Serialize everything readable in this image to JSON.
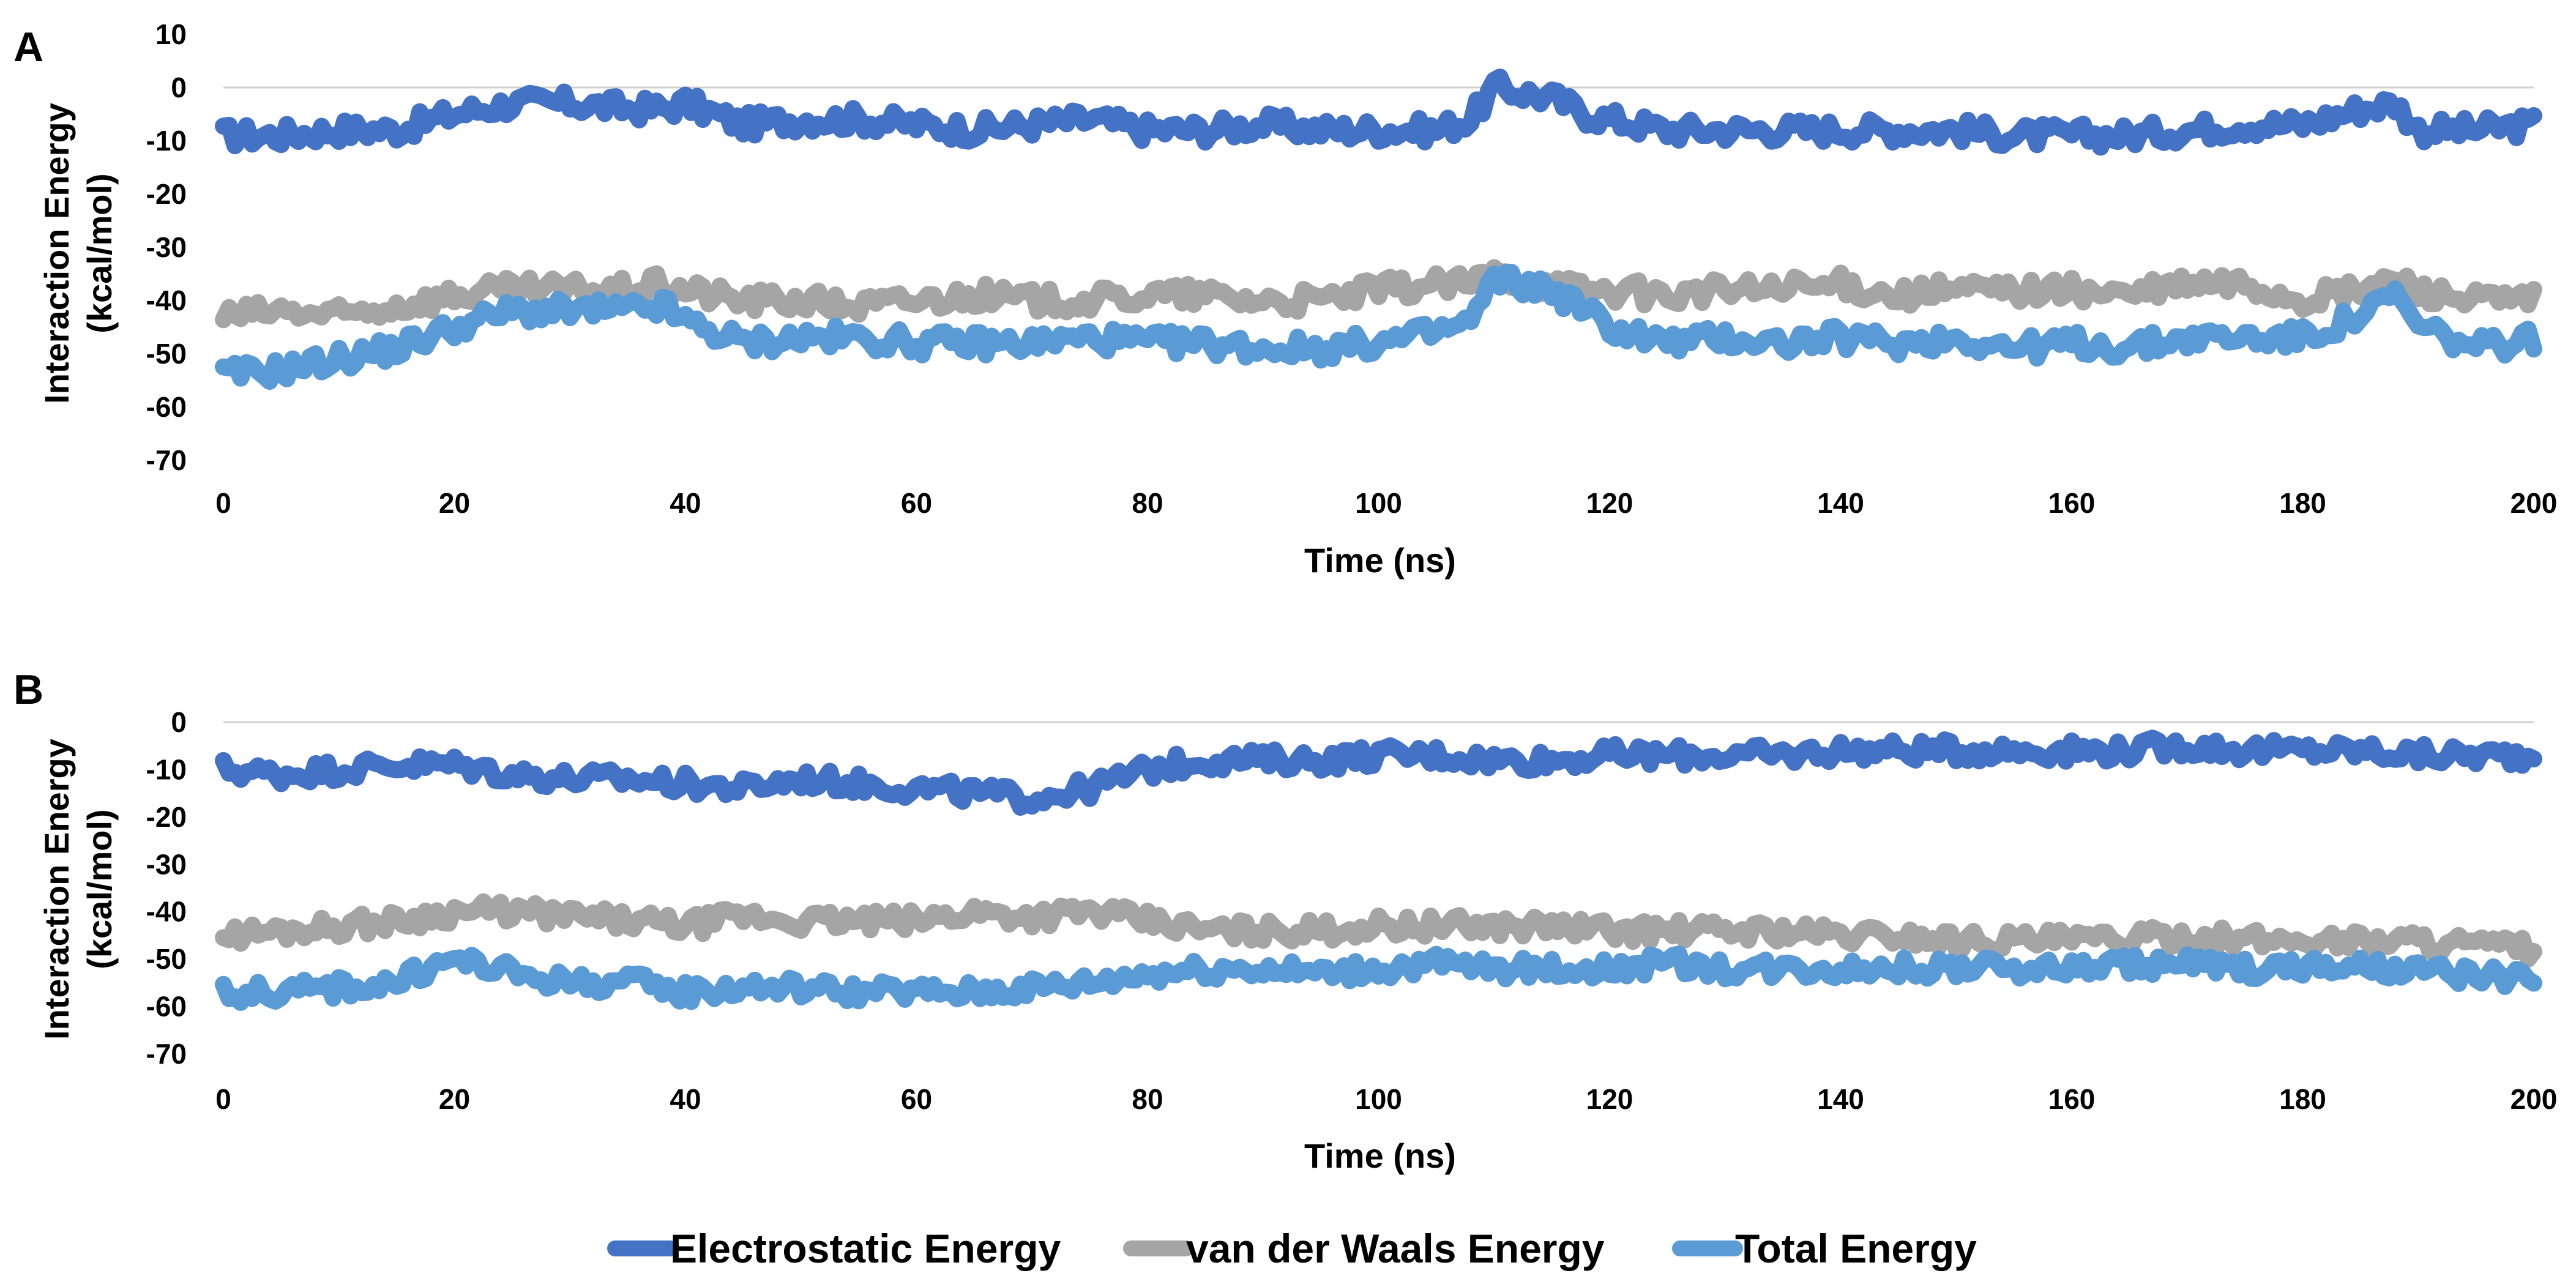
{
  "chart_data": [
    {
      "panel_label": "A",
      "type": "line",
      "xlabel": "Time (ns)",
      "ylabel_line1": "Interaction Energy",
      "ylabel_line2": "(kcal/mol)",
      "xlim": [
        0,
        200
      ],
      "ylim": [
        -70,
        10
      ],
      "x_ticks": [
        0,
        20,
        40,
        60,
        80,
        100,
        120,
        140,
        160,
        180,
        200
      ],
      "y_ticks": [
        10,
        0,
        -10,
        -20,
        -30,
        -40,
        -50,
        -60,
        -70
      ],
      "x": [
        0,
        5,
        10,
        15,
        20,
        25,
        30,
        35,
        38,
        40,
        45,
        50,
        55,
        60,
        65,
        70,
        75,
        80,
        85,
        90,
        95,
        100,
        105,
        108,
        110,
        115,
        118,
        120,
        125,
        130,
        135,
        140,
        145,
        150,
        155,
        160,
        165,
        170,
        175,
        180,
        185,
        188,
        190,
        195,
        200
      ],
      "series": [
        {
          "name": "Electrostatic Energy",
          "color": "#4472c4",
          "values": [
            -9,
            -9,
            -8,
            -8,
            -5,
            -3,
            -3,
            -4,
            -4,
            -3,
            -7,
            -6,
            -6,
            -7,
            -8,
            -7,
            -6,
            -8,
            -8,
            -7,
            -8,
            -8,
            -8,
            -6,
            0,
            -2,
            -5,
            -6,
            -8,
            -8,
            -8,
            -8,
            -8,
            -8,
            -9,
            -9,
            -9,
            -8,
            -7,
            -7,
            -4,
            -3,
            -8,
            -8,
            -7
          ]
        },
        {
          "name": "van der Waals Energy",
          "color": "#a5a5a5",
          "values": [
            -43,
            -42,
            -43,
            -41,
            -39,
            -38,
            -38,
            -38,
            -37,
            -38,
            -40,
            -40,
            -41,
            -40,
            -39,
            -40,
            -40,
            -39,
            -39,
            -40,
            -40,
            -38,
            -37,
            -37,
            -35,
            -37,
            -38,
            -38,
            -39,
            -38,
            -38,
            -37,
            -39,
            -38,
            -38,
            -38,
            -39,
            -37,
            -37,
            -40,
            -38,
            -36,
            -38,
            -40,
            -40
          ]
        },
        {
          "name": "Total Energy",
          "color": "#5b9bd5",
          "values": [
            -54,
            -53,
            -51,
            -49,
            -45,
            -42,
            -42,
            -42,
            -41,
            -44,
            -48,
            -47,
            -47,
            -48,
            -48,
            -48,
            -47,
            -48,
            -48,
            -49,
            -49,
            -48,
            -46,
            -44,
            -36,
            -38,
            -42,
            -45,
            -48,
            -47,
            -48,
            -47,
            -48,
            -47,
            -49,
            -48,
            -49,
            -47,
            -47,
            -47,
            -43,
            -39,
            -45,
            -49,
            -47
          ]
        }
      ]
    },
    {
      "panel_label": "B",
      "type": "line",
      "xlabel": "Time (ns)",
      "ylabel_line1": "Interaction Energy",
      "ylabel_line2": "(kcal/mol)",
      "xlim": [
        0,
        200
      ],
      "ylim": [
        -70,
        0
      ],
      "x_ticks": [
        0,
        20,
        40,
        60,
        80,
        100,
        120,
        140,
        160,
        180,
        200
      ],
      "y_ticks": [
        0,
        -10,
        -20,
        -30,
        -40,
        -50,
        -60,
        -70
      ],
      "x": [
        0,
        5,
        10,
        15,
        20,
        25,
        30,
        35,
        40,
        45,
        50,
        55,
        60,
        65,
        70,
        75,
        80,
        85,
        90,
        95,
        100,
        105,
        110,
        115,
        120,
        125,
        130,
        135,
        140,
        145,
        150,
        155,
        160,
        165,
        170,
        175,
        180,
        185,
        190,
        195,
        200
      ],
      "series": [
        {
          "name": "Electrostatic Energy",
          "color": "#4472c4",
          "values": [
            -10,
            -11,
            -10,
            -9,
            -9,
            -11,
            -12,
            -12,
            -13,
            -14,
            -12,
            -13,
            -14,
            -15,
            -16,
            -14,
            -10,
            -8,
            -8,
            -8,
            -7,
            -7,
            -8,
            -8,
            -7,
            -7,
            -7,
            -7,
            -6,
            -6,
            -6,
            -6,
            -6,
            -6,
            -5,
            -6,
            -6,
            -6,
            -7,
            -7,
            -7
          ]
        },
        {
          "name": "van der Waals Energy",
          "color": "#a5a5a5",
          "values": [
            -45,
            -44,
            -43,
            -42,
            -40,
            -40,
            -41,
            -42,
            -43,
            -41,
            -42,
            -42,
            -42,
            -40,
            -41,
            -40,
            -42,
            -44,
            -44,
            -44,
            -43,
            -43,
            -43,
            -43,
            -44,
            -44,
            -44,
            -44,
            -45,
            -45,
            -46,
            -46,
            -46,
            -46,
            -45,
            -46,
            -46,
            -46,
            -46,
            -47,
            -48
          ]
        },
        {
          "name": "Total Energy",
          "color": "#5b9bd5",
          "values": [
            -57,
            -57,
            -56,
            -55,
            -50,
            -53,
            -55,
            -55,
            -57,
            -56,
            -56,
            -57,
            -57,
            -57,
            -56,
            -55,
            -53,
            -52,
            -52,
            -53,
            -52,
            -51,
            -52,
            -52,
            -52,
            -51,
            -52,
            -52,
            -52,
            -52,
            -52,
            -52,
            -52,
            -51,
            -51,
            -52,
            -52,
            -52,
            -53,
            -53,
            -55
          ]
        }
      ]
    }
  ],
  "legend": [
    {
      "name": "Electrostatic Energy",
      "color": "#4472c4"
    },
    {
      "name": "van der Waals Energy",
      "color": "#a5a5a5"
    },
    {
      "name": "Total Energy",
      "color": "#5b9bd5"
    }
  ]
}
